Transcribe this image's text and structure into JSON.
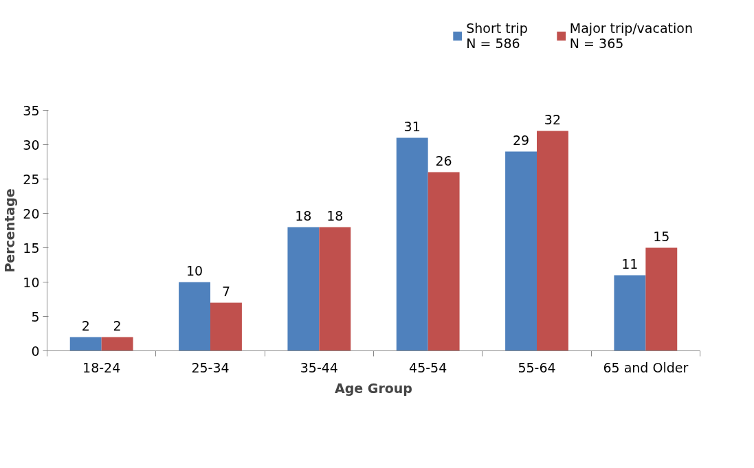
{
  "chart_data": {
    "type": "bar",
    "xlabel": "Age Group",
    "ylabel": "Percentage",
    "categories": [
      "18-24",
      "25-34",
      "35-44",
      "45-54",
      "55-64",
      "65 and Older"
    ],
    "series": [
      {
        "name": "Short trip\nN = 586",
        "color": "#4f81bd",
        "values": [
          2,
          10,
          18,
          31,
          29,
          11
        ]
      },
      {
        "name": "Major trip/vacation\nN = 365",
        "color": "#c0504d",
        "values": [
          2,
          7,
          18,
          26,
          32,
          15
        ]
      }
    ],
    "ylim": [
      0,
      35
    ],
    "yticks": [
      0,
      5,
      10,
      15,
      20,
      25,
      30,
      35
    ],
    "data_labels": true,
    "legend": "top right",
    "grid": false
  }
}
